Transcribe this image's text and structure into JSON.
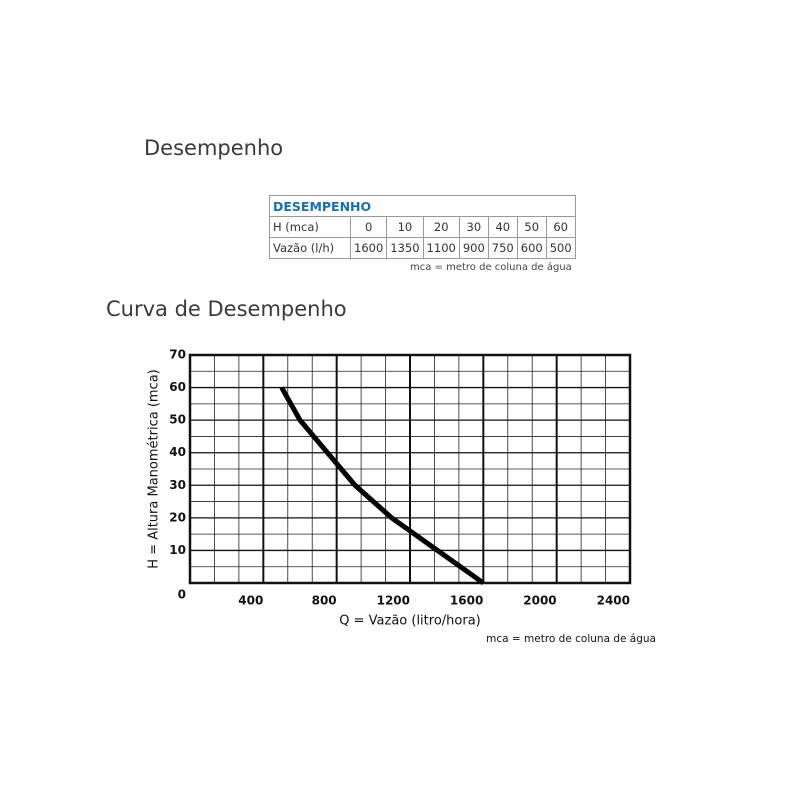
{
  "headings": [
    "Desempenho",
    "Curva de Desempenho"
  ],
  "table": {
    "title": "DESEMPENHO",
    "rows": [
      {
        "label": "H (mca)",
        "cells": [
          0,
          10,
          20,
          30,
          40,
          50,
          60
        ]
      },
      {
        "label": "Vazão (l/h)",
        "cells": [
          1600,
          1350,
          1100,
          900,
          750,
          600,
          500
        ]
      }
    ],
    "note": "mca = metro de coluna de água"
  },
  "chart_data": {
    "type": "line",
    "x": [
      500,
      600,
      750,
      900,
      1100,
      1350,
      1600
    ],
    "values": [
      60,
      50,
      40,
      30,
      20,
      10,
      0
    ],
    "color": "#000000",
    "xlim": [
      0,
      2400
    ],
    "xticks": [
      400,
      800,
      1200,
      1600,
      2000,
      2400
    ],
    "ylim": [
      0,
      70
    ],
    "yticks": [
      0,
      10,
      20,
      30,
      40,
      50,
      60,
      70
    ],
    "xlabel": "Q = Vazão (litro/hora)",
    "ylabel": "H = Altura Manométrica (mca)",
    "note": "mca = metro de coluna de água",
    "grid": true
  }
}
